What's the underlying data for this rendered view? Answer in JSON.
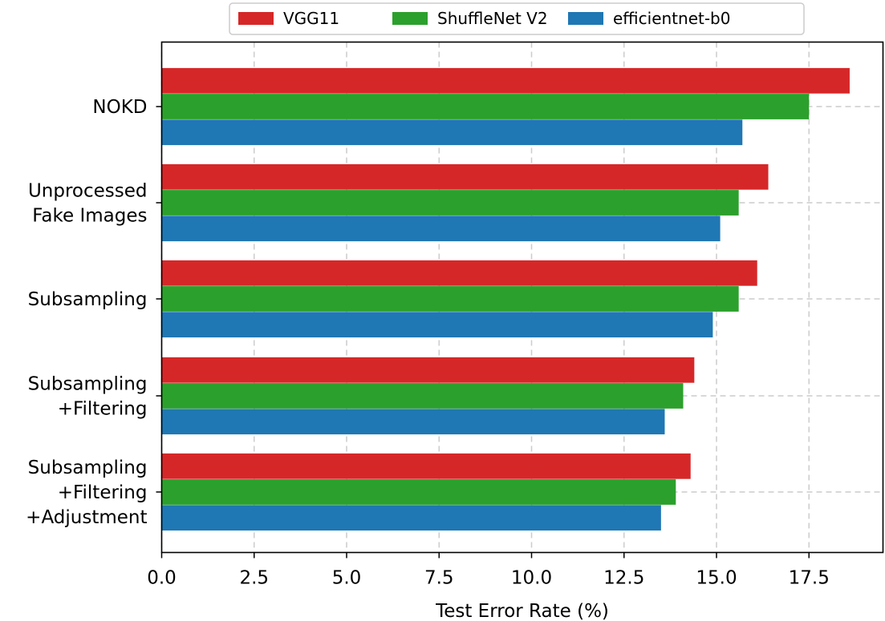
{
  "chart_data": {
    "type": "bar",
    "orientation": "horizontal",
    "categories": [
      [
        "NOKD"
      ],
      [
        "Unprocessed",
        "Fake Images"
      ],
      [
        "Subsampling"
      ],
      [
        "Subsampling",
        "+Filtering"
      ],
      [
        "Subsampling",
        "+Filtering",
        "+Adjustment"
      ]
    ],
    "series": [
      {
        "name": "VGG11",
        "color": "#d62728",
        "values": [
          18.6,
          16.4,
          16.1,
          14.4,
          14.3
        ]
      },
      {
        "name": "ShuffleNet V2",
        "color": "#2ca02c",
        "values": [
          17.5,
          15.6,
          15.6,
          14.1,
          13.9
        ]
      },
      {
        "name": "efficientnet-b0",
        "color": "#1f77b4",
        "values": [
          15.7,
          15.1,
          14.9,
          13.6,
          13.5
        ]
      }
    ],
    "xlabel": "Test Error Rate (%)",
    "ylabel": "",
    "xlim": [
      0,
      19.55
    ],
    "xticks": [
      0.0,
      2.5,
      5.0,
      7.5,
      10.0,
      12.5,
      15.0,
      17.5
    ],
    "xtick_labels": [
      "0.0",
      "2.5",
      "5.0",
      "7.5",
      "10.0",
      "12.5",
      "15.0",
      "17.5"
    ],
    "grid": true,
    "legend_position": "top-center"
  }
}
